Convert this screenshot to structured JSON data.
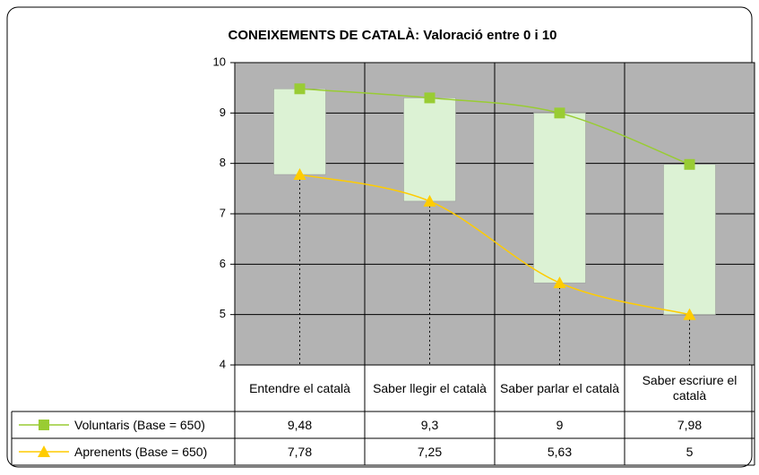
{
  "chart_data": {
    "type": "line",
    "title": "CONEIXEMENTS DE CATALÀ: Valoració entre 0 i 10",
    "categories": [
      "Entendre el català",
      "Saber llegir el català",
      "Saber parlar el català",
      "Saber escriure el català"
    ],
    "series": [
      {
        "name": "Voluntaris (Base = 650)",
        "color": "#99cc33",
        "values": [
          9.48,
          9.3,
          9,
          7.98
        ],
        "value_labels": [
          "9,48",
          "9,3",
          "9",
          "7,98"
        ]
      },
      {
        "name": "Aprenents (Base = 650)",
        "color": "#ffcc00",
        "values": [
          7.78,
          7.25,
          5.63,
          5
        ],
        "value_labels": [
          "7,78",
          "7,25",
          "5,63",
          "5"
        ]
      }
    ],
    "high_low_color": "#dcf2d4",
    "plot_background": "#b3b3b3",
    "ylim": [
      4,
      10
    ],
    "yticks": [
      4,
      5,
      6,
      7,
      8,
      9,
      10
    ],
    "grid": true
  }
}
